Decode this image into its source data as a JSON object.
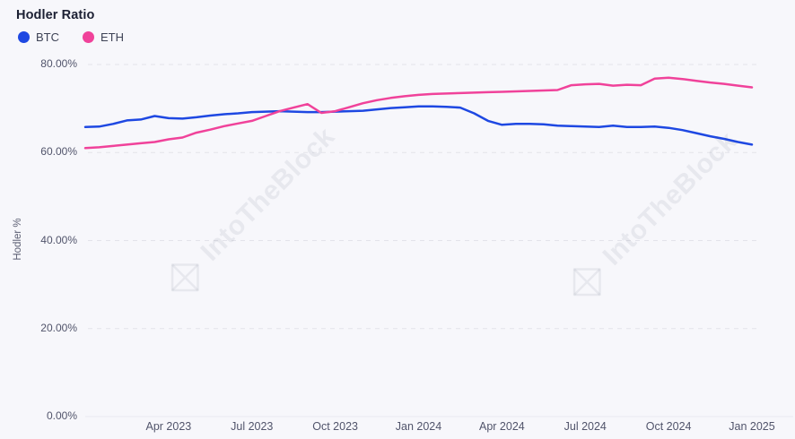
{
  "header": {
    "title": "Hodler Ratio"
  },
  "legend": {
    "items": [
      {
        "label": "BTC",
        "color": "#1e48e2"
      },
      {
        "label": "ETH",
        "color": "#f0429a"
      }
    ]
  },
  "watermark": {
    "text": "IntoTheBlock"
  },
  "colors": {
    "background": "#f7f7fb",
    "gridline": "#e3e3ea",
    "axis_line": "#eaeaf0",
    "btc_line": "#1e48e2",
    "eth_line": "#f0429a"
  },
  "chart_data": {
    "type": "line",
    "title": "Hodler Ratio",
    "xlabel": "",
    "ylabel": "Hodler %",
    "ylim": [
      0,
      80
    ],
    "grid": "horizontal-dashed",
    "legend_position": "top-left",
    "x_unit": "semi-monthly samples",
    "x_range": [
      "Jan 2023",
      "Jan 2025"
    ],
    "x_total_months": 24,
    "x_tick_labels": [
      "Apr 2023",
      "Jul 2023",
      "Oct 2023",
      "Jan 2024",
      "Apr 2024",
      "Jul 2024",
      "Oct 2024",
      "Jan 2025"
    ],
    "x_tick_month_offsets": [
      3,
      6,
      9,
      12,
      15,
      18,
      21,
      24
    ],
    "y_tick_labels": [
      "80.00%",
      "60.00%",
      "40.00%",
      "20.00%",
      "0.00%"
    ],
    "y_tick_values": [
      80,
      60,
      40,
      20,
      0
    ],
    "unit": "%",
    "series": [
      {
        "name": "BTC",
        "color": "#1e48e2",
        "values": [
          65.8,
          65.9,
          66.5,
          67.3,
          67.5,
          68.3,
          67.8,
          67.7,
          68.0,
          68.4,
          68.7,
          68.9,
          69.2,
          69.3,
          69.4,
          69.3,
          69.2,
          69.2,
          69.3,
          69.4,
          69.5,
          69.8,
          70.1,
          70.3,
          70.5,
          70.5,
          70.4,
          70.2,
          68.9,
          67.2,
          66.3,
          66.5,
          66.5,
          66.4,
          66.1,
          66.0,
          65.9,
          65.8,
          66.1,
          65.8,
          65.8,
          65.9,
          65.6,
          65.1,
          64.4,
          63.7,
          63.1,
          62.4,
          61.8
        ]
      },
      {
        "name": "ETH",
        "color": "#f0429a",
        "values": [
          61.0,
          61.2,
          61.5,
          61.8,
          62.1,
          62.4,
          63.0,
          63.4,
          64.5,
          65.2,
          66.0,
          66.6,
          67.2,
          68.3,
          69.4,
          70.2,
          71.0,
          69.0,
          69.4,
          70.3,
          71.2,
          71.9,
          72.4,
          72.8,
          73.1,
          73.3,
          73.4,
          73.5,
          73.6,
          73.7,
          73.8,
          73.9,
          74.0,
          74.1,
          74.2,
          75.3,
          75.5,
          75.6,
          75.2,
          75.4,
          75.3,
          76.8,
          77.0,
          76.7,
          76.3,
          75.9,
          75.6,
          75.2,
          74.8
        ]
      }
    ]
  }
}
